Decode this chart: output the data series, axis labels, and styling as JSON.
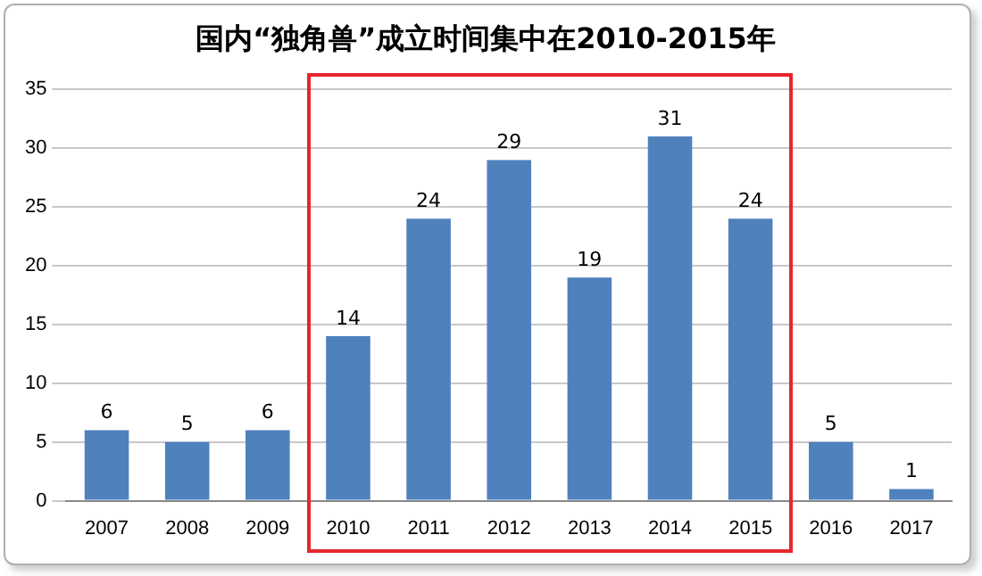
{
  "chart_data": {
    "type": "bar",
    "title": "国内“独角兽”成立时间集中在2010-2015年",
    "categories": [
      "2007",
      "2008",
      "2009",
      "2010",
      "2011",
      "2012",
      "2013",
      "2014",
      "2015",
      "2016",
      "2017"
    ],
    "values": [
      6,
      5,
      6,
      14,
      24,
      29,
      19,
      31,
      24,
      5,
      1
    ],
    "color": "#4f81bd",
    "ylim": [
      0,
      35
    ],
    "yticks": [
      0,
      5,
      10,
      15,
      20,
      25,
      30,
      35
    ],
    "grid": "y",
    "data_labels": true
  }
}
